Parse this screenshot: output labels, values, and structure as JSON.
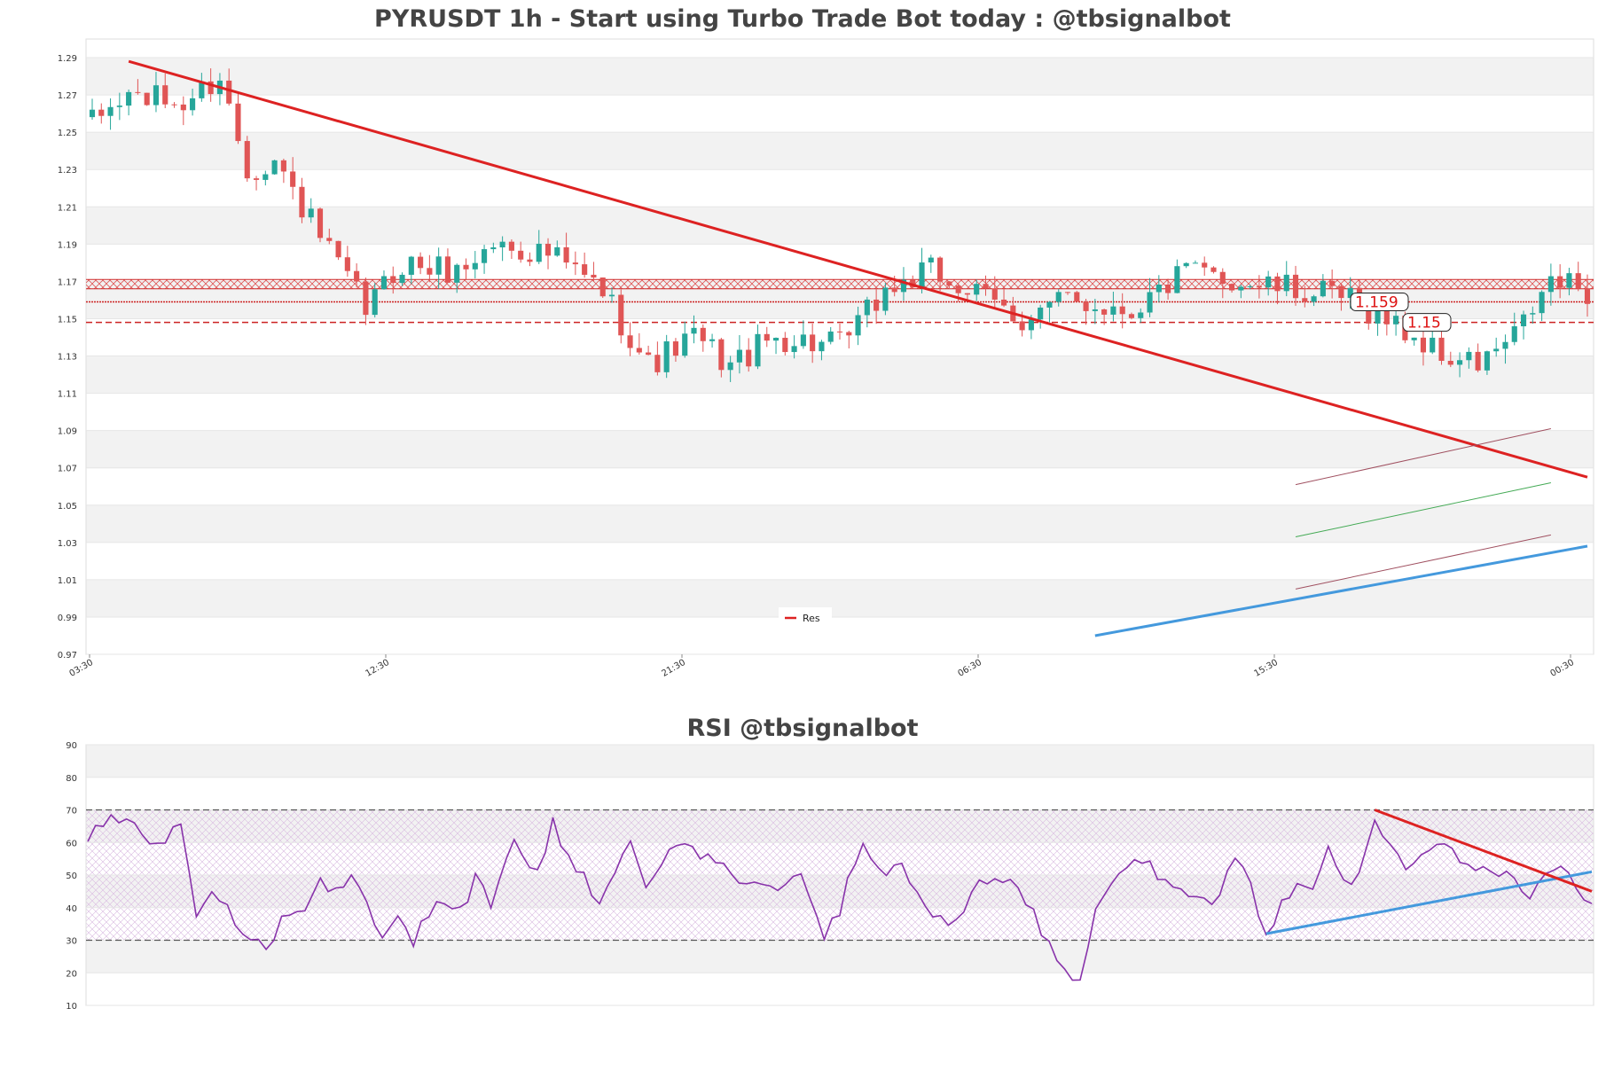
{
  "chart_data": [
    {
      "type": "candlestick",
      "title": "PYRUSDT 1h - Start using Turbo Trade Bot today : @tbsignalbot",
      "xlabel": "",
      "ylabel": "",
      "x_tick_labels": [
        "03:30",
        "12:30",
        "21:30",
        "06:30",
        "15:30",
        "00:30"
      ],
      "y_ticks": [
        0.97,
        0.99,
        1.01,
        1.03,
        1.05,
        1.07,
        1.09,
        1.11,
        1.13,
        1.15,
        1.17,
        1.19,
        1.21,
        1.23,
        1.25,
        1.27,
        1.29
      ],
      "ylim": [
        0.97,
        1.3
      ],
      "grid": "alternating horizontal bands",
      "legend": {
        "position": "bottom-center",
        "entries": [
          {
            "label": "Res",
            "color": "#dd2222"
          }
        ]
      },
      "candle_count": 165,
      "candle_keypoints": [
        [
          0,
          1.255
        ],
        [
          4,
          1.27
        ],
        [
          10,
          1.265
        ],
        [
          14,
          1.28
        ],
        [
          17,
          1.23
        ],
        [
          20,
          1.235
        ],
        [
          26,
          1.185
        ],
        [
          30,
          1.155
        ],
        [
          34,
          1.18
        ],
        [
          40,
          1.175
        ],
        [
          44,
          1.19
        ],
        [
          50,
          1.185
        ],
        [
          56,
          1.165
        ],
        [
          61,
          1.125
        ],
        [
          66,
          1.14
        ],
        [
          70,
          1.125
        ],
        [
          75,
          1.14
        ],
        [
          82,
          1.135
        ],
        [
          87,
          1.165
        ],
        [
          92,
          1.175
        ],
        [
          96,
          1.165
        ],
        [
          102,
          1.15
        ],
        [
          107,
          1.16
        ],
        [
          114,
          1.155
        ],
        [
          120,
          1.175
        ],
        [
          126,
          1.17
        ],
        [
          132,
          1.165
        ],
        [
          138,
          1.16
        ],
        [
          142,
          1.15
        ],
        [
          148,
          1.13
        ],
        [
          152,
          1.125
        ],
        [
          156,
          1.14
        ],
        [
          160,
          1.17
        ],
        [
          164,
          1.165
        ]
      ],
      "price_levels": [
        {
          "label": "1.159",
          "value": 1.159,
          "style": "dotted"
        },
        {
          "label": "1.15",
          "value": 1.148,
          "style": "dashed"
        }
      ],
      "resistance_band": [
        1.166,
        1.171
      ],
      "trendlines": [
        {
          "name": "Res",
          "color": "#dd2222",
          "from": [
            4,
            1.288
          ],
          "to": [
            164,
            1.065
          ]
        },
        {
          "color": "#4499dd",
          "from": [
            110,
            0.98
          ],
          "to": [
            164,
            1.028
          ]
        }
      ]
    },
    {
      "type": "line",
      "title": "RSI @tbsignalbot",
      "y_ticks": [
        10,
        20,
        30,
        40,
        50,
        60,
        70,
        80,
        90
      ],
      "ylim": [
        10,
        90
      ],
      "reference_lines": [
        30,
        70
      ],
      "line_color": "#8833aa",
      "rsi_keypoints": [
        [
          0,
          62
        ],
        [
          3,
          68
        ],
        [
          6,
          64
        ],
        [
          9,
          60
        ],
        [
          12,
          66
        ],
        [
          14,
          38
        ],
        [
          16,
          46
        ],
        [
          18,
          40
        ],
        [
          20,
          34
        ],
        [
          23,
          27
        ],
        [
          26,
          40
        ],
        [
          28,
          38
        ],
        [
          30,
          50
        ],
        [
          32,
          44
        ],
        [
          34,
          50
        ],
        [
          36,
          42
        ],
        [
          38,
          30
        ],
        [
          40,
          36
        ],
        [
          42,
          29
        ],
        [
          45,
          44
        ],
        [
          48,
          40
        ],
        [
          50,
          48
        ],
        [
          52,
          42
        ],
        [
          55,
          60
        ],
        [
          58,
          50
        ],
        [
          60,
          66
        ],
        [
          62,
          55
        ],
        [
          64,
          50
        ],
        [
          66,
          40
        ],
        [
          68,
          52
        ],
        [
          70,
          58
        ],
        [
          72,
          45
        ],
        [
          75,
          60
        ],
        [
          77,
          62
        ],
        [
          80,
          55
        ],
        [
          83,
          50
        ],
        [
          86,
          48
        ],
        [
          89,
          44
        ],
        [
          92,
          50
        ],
        [
          95,
          32
        ],
        [
          97,
          40
        ],
        [
          100,
          62
        ],
        [
          102,
          50
        ],
        [
          105,
          55
        ],
        [
          108,
          40
        ],
        [
          110,
          38
        ],
        [
          112,
          35
        ],
        [
          115,
          48
        ],
        [
          118,
          50
        ],
        [
          120,
          45
        ],
        [
          124,
          30
        ],
        [
          126,
          22
        ],
        [
          128,
          17
        ],
        [
          130,
          40
        ],
        [
          133,
          48
        ],
        [
          136,
          55
        ],
        [
          139,
          49
        ],
        [
          142,
          45
        ],
        [
          145,
          40
        ],
        [
          148,
          55
        ],
        [
          150,
          46
        ],
        [
          152,
          32
        ],
        [
          155,
          44
        ],
        [
          158,
          48
        ],
        [
          160,
          60
        ],
        [
          163,
          45
        ],
        [
          166,
          68
        ],
        [
          170,
          50
        ],
        [
          174,
          60
        ],
        [
          178,
          52
        ],
        [
          182,
          50
        ],
        [
          186,
          45
        ],
        [
          190,
          52
        ],
        [
          194,
          40
        ]
      ],
      "trendlines": [
        {
          "color": "#4499dd",
          "from": [
            152,
            32
          ],
          "to": [
            194,
            51
          ]
        },
        {
          "color": "#dd2222",
          "from": [
            166,
            70
          ],
          "to": [
            194,
            45
          ]
        }
      ]
    }
  ]
}
